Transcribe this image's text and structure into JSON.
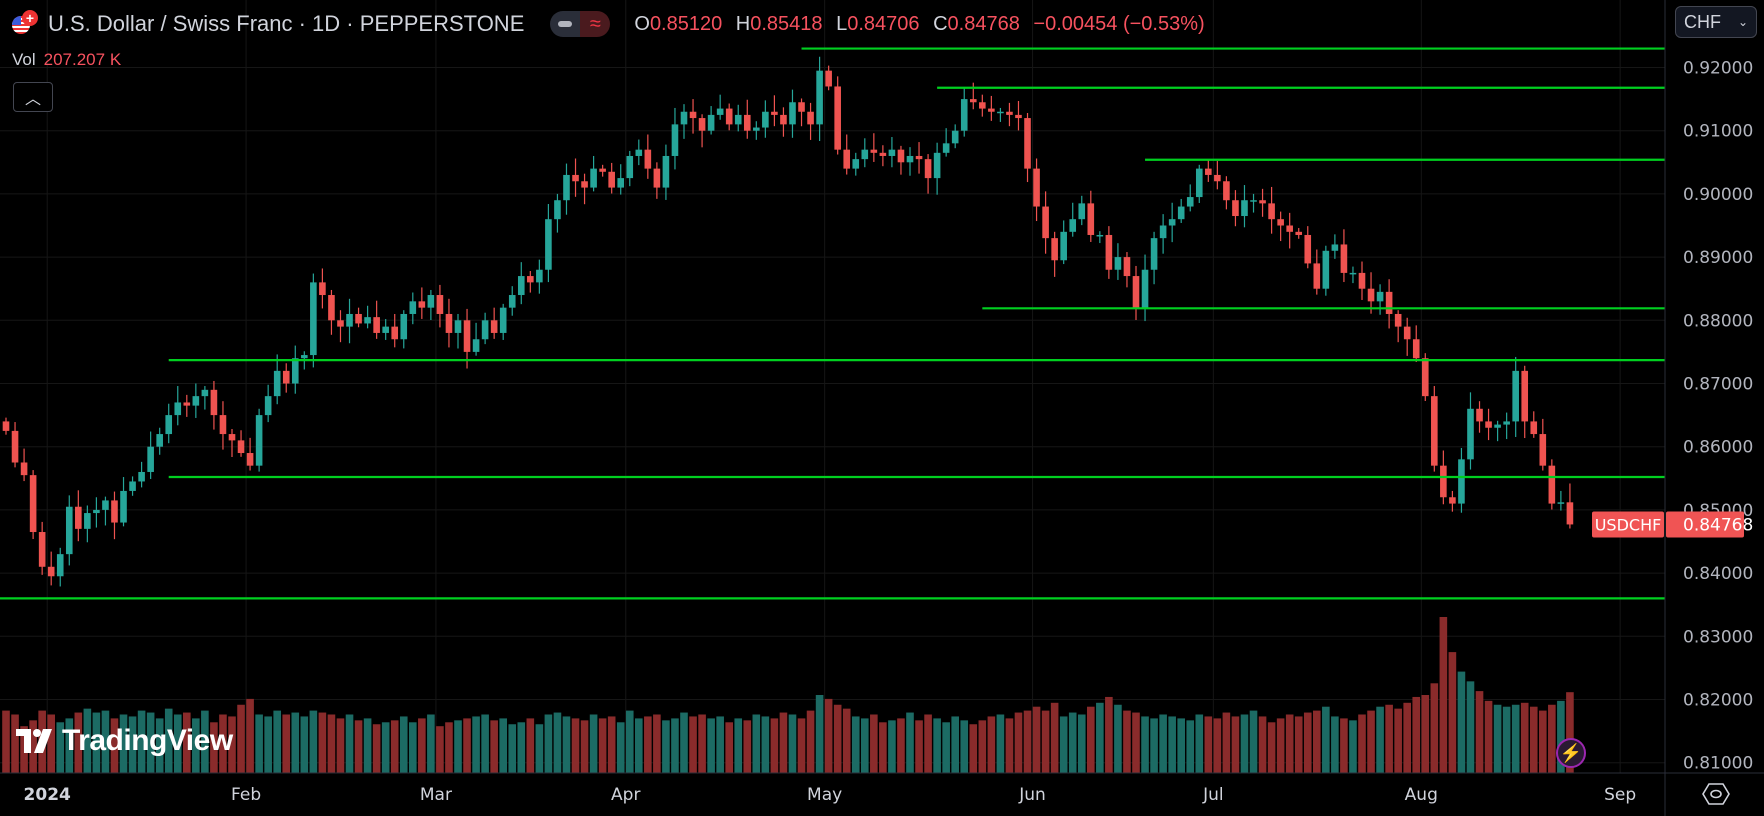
{
  "header": {
    "title": "U.S. Dollar / Swiss Franc · 1D · PEPPERSTONE",
    "icons": [
      "us-flag-icon",
      "swiss-flag-icon",
      "market-status-icon",
      "wave-icon"
    ],
    "ohlc": {
      "o_label": "O",
      "o": "0.85120",
      "h_label": "H",
      "h": "0.85418",
      "l_label": "L",
      "l": "0.84706",
      "c_label": "C",
      "c": "0.84768",
      "change": "−0.00454 (−0.53%)"
    },
    "vol_label": "Vol",
    "vol_value": "207.207 K",
    "collapse_icon": "chevron-up-icon"
  },
  "currency_select": {
    "value": "CHF"
  },
  "branding": {
    "logo_text": "TradingView"
  },
  "chart_data": {
    "type": "candlestick",
    "symbol_label": "USDCHF",
    "last_price_label": "0.84768",
    "ylim": [
      0.805,
      0.925
    ],
    "y_ticks": [
      "0.92000",
      "0.91000",
      "0.90000",
      "0.89000",
      "0.88000",
      "0.87000",
      "0.86000",
      "0.85000",
      "0.84000",
      "0.83000",
      "0.82000",
      "0.81000"
    ],
    "x_tick_next": "Sep",
    "grid": true,
    "colors": {
      "up": "#26a69a",
      "down": "#ef5350",
      "level": "#00d020",
      "last_price": "#f05454",
      "volume_up": "#1c6b64",
      "volume_down": "#8a2b2b"
    },
    "months": [
      {
        "label": "",
        "closes": [
          0.8625,
          0.8575,
          0.8555,
          0.8465,
          0.841
        ],
        "volumes_k": [
          160,
          150,
          120,
          135,
          160
        ]
      },
      {
        "label": "2024",
        "closes": [
          0.8395,
          0.843,
          0.8505,
          0.847,
          0.8495,
          0.85,
          0.8515,
          0.848,
          0.853,
          0.8545,
          0.856,
          0.86,
          0.862,
          0.865,
          0.867,
          0.8665,
          0.868,
          0.869,
          0.865,
          0.862,
          0.861,
          0.859
        ],
        "volumes_k": [
          150,
          130,
          140,
          155,
          165,
          155,
          160,
          140,
          150,
          145,
          160,
          155,
          140,
          165,
          150,
          155,
          140,
          160,
          130,
          150,
          145,
          175
        ]
      },
      {
        "label": "Feb",
        "closes": [
          0.857,
          0.865,
          0.868,
          0.872,
          0.87,
          0.874,
          0.8745,
          0.886,
          0.884,
          0.88,
          0.879,
          0.881,
          0.8795,
          0.8805,
          0.878,
          0.879,
          0.877,
          0.881,
          0.883,
          0.882,
          0.884
        ],
        "volumes_k": [
          190,
          150,
          145,
          160,
          150,
          155,
          145,
          160,
          155,
          150,
          140,
          150,
          135,
          140,
          125,
          130,
          135,
          145,
          130,
          140,
          150
        ]
      },
      {
        "label": "Mar",
        "closes": [
          0.881,
          0.878,
          0.88,
          0.875,
          0.877,
          0.88,
          0.878,
          0.882,
          0.884,
          0.887,
          0.886,
          0.888,
          0.896,
          0.899,
          0.903,
          0.902,
          0.901,
          0.904,
          0.9035,
          0.901,
          0.9025
        ],
        "volumes_k": [
          120,
          130,
          135,
          140,
          145,
          150,
          135,
          140,
          125,
          130,
          140,
          125,
          150,
          155,
          145,
          140,
          135,
          150,
          140,
          145,
          130
        ]
      },
      {
        "label": "Apr",
        "closes": [
          0.906,
          0.907,
          0.904,
          0.901,
          0.906,
          0.911,
          0.913,
          0.912,
          0.91,
          0.9125,
          0.9135,
          0.911,
          0.9125,
          0.91,
          0.9105,
          0.913,
          0.9125,
          0.911,
          0.9145,
          0.913,
          0.911,
          0.9195
        ],
        "volumes_k": [
          160,
          140,
          145,
          150,
          135,
          140,
          155,
          145,
          150,
          140,
          145,
          130,
          140,
          135,
          150,
          145,
          140,
          155,
          150,
          140,
          160,
          200
        ]
      },
      {
        "label": "May",
        "closes": [
          0.917,
          0.907,
          0.904,
          0.9055,
          0.907,
          0.9065,
          0.906,
          0.907,
          0.905,
          0.906,
          0.9055,
          0.9025,
          0.9065,
          0.908,
          0.91,
          0.915,
          0.9145,
          0.9135,
          0.913,
          0.913,
          0.9125,
          0.912,
          0.904
        ],
        "volumes_k": [
          190,
          175,
          165,
          145,
          140,
          150,
          130,
          135,
          140,
          155,
          135,
          150,
          140,
          130,
          145,
          135,
          125,
          135,
          145,
          150,
          140,
          155,
          160
        ]
      },
      {
        "label": "Jun",
        "closes": [
          0.898,
          0.893,
          0.8895,
          0.894,
          0.896,
          0.8985,
          0.8935,
          0.8935,
          0.888,
          0.89,
          0.887,
          0.882,
          0.888,
          0.893,
          0.895,
          0.896,
          0.898,
          0.8995,
          0.904,
          0.903
        ],
        "volumes_k": [
          170,
          160,
          180,
          145,
          155,
          150,
          170,
          180,
          195,
          175,
          160,
          155,
          145,
          140,
          150,
          145,
          140,
          135,
          150,
          145
        ]
      },
      {
        "label": "Jul",
        "closes": [
          0.902,
          0.899,
          0.8965,
          0.899,
          0.899,
          0.8985,
          0.896,
          0.895,
          0.894,
          0.8935,
          0.889,
          0.885,
          0.891,
          0.892,
          0.8875,
          0.8875,
          0.885,
          0.883,
          0.8845,
          0.881,
          0.879,
          0.877,
          0.874
        ],
        "volumes_k": [
          140,
          155,
          145,
          150,
          160,
          145,
          130,
          140,
          150,
          145,
          155,
          160,
          170,
          145,
          140,
          135,
          150,
          160,
          170,
          175,
          165,
          180,
          195
        ]
      },
      {
        "label": "Aug",
        "closes": [
          0.868,
          0.857,
          0.852,
          0.851,
          0.858,
          0.866,
          0.864,
          0.863,
          0.8635,
          0.864,
          0.872,
          0.864,
          0.862,
          0.857,
          0.851,
          0.8512,
          0.8477
        ],
        "volumes_k": [
          200,
          230,
          400,
          310,
          260,
          235,
          210,
          185,
          175,
          170,
          175,
          180,
          170,
          160,
          175,
          185,
          207.207
        ]
      }
    ],
    "levels": [
      {
        "price": 0.923,
        "from_candle": 88
      },
      {
        "price": 0.9168,
        "from_candle": 103
      },
      {
        "price": 0.9054,
        "from_candle": 126
      },
      {
        "price": 0.8819,
        "from_candle": 108
      },
      {
        "price": 0.8737,
        "from_candle": 18
      },
      {
        "price": 0.8552,
        "from_candle": 18
      },
      {
        "price": 0.836,
        "from_candle": 0
      }
    ]
  }
}
